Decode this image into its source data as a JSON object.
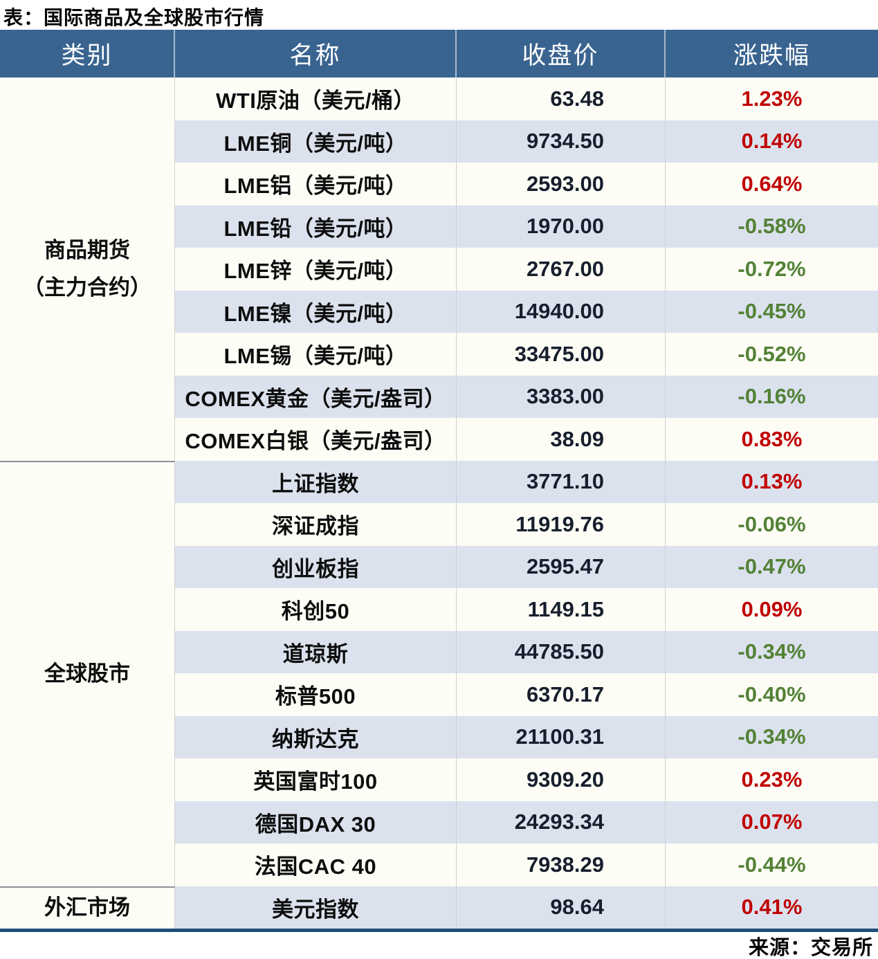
{
  "title": "表：国际商品及全球股市行情",
  "source": "来源：交易所",
  "colors": {
    "header_bg": "#3A6490",
    "row_white": "#FDFDF6",
    "row_blue": "#DBE2EE",
    "up_red": "#C00000",
    "down_green": "#538135",
    "bottom_rule_navy": "#1F4E79"
  },
  "table": {
    "headers": [
      "类别",
      "名称",
      "收盘价",
      "涨跌幅"
    ],
    "sections": [
      {
        "category": "商品期货\n（主力合约）",
        "rows": [
          {
            "name": "WTI原油（美元/桶）",
            "close": "63.48",
            "change": "1.23%"
          },
          {
            "name": "LME铜（美元/吨）",
            "close": "9734.50",
            "change": "0.14%"
          },
          {
            "name": "LME铝（美元/吨）",
            "close": "2593.00",
            "change": "0.64%"
          },
          {
            "name": "LME铅（美元/吨）",
            "close": "1970.00",
            "change": "-0.58%"
          },
          {
            "name": "LME锌（美元/吨）",
            "close": "2767.00",
            "change": "-0.72%"
          },
          {
            "name": "LME镍（美元/吨）",
            "close": "14940.00",
            "change": "-0.45%"
          },
          {
            "name": "LME锡（美元/吨）",
            "close": "33475.00",
            "change": "-0.52%"
          },
          {
            "name": "COMEX黄金（美元/盎司）",
            "close": "3383.00",
            "change": "-0.16%"
          },
          {
            "name": "COMEX白银（美元/盎司）",
            "close": "38.09",
            "change": "0.83%"
          }
        ]
      },
      {
        "category": "全球股市",
        "rows": [
          {
            "name": "上证指数",
            "close": "3771.10",
            "change": "0.13%"
          },
          {
            "name": "深证成指",
            "close": "11919.76",
            "change": "-0.06%"
          },
          {
            "name": "创业板指",
            "close": "2595.47",
            "change": "-0.47%"
          },
          {
            "name": "科创50",
            "close": "1149.15",
            "change": "0.09%"
          },
          {
            "name": "道琼斯",
            "close": "44785.50",
            "change": "-0.34%"
          },
          {
            "name": "标普500",
            "close": "6370.17",
            "change": "-0.40%"
          },
          {
            "name": "纳斯达克",
            "close": "21100.31",
            "change": "-0.34%"
          },
          {
            "name": "英国富时100",
            "close": "9309.20",
            "change": "0.23%"
          },
          {
            "name": "德国DAX 30",
            "close": "24293.34",
            "change": "0.07%"
          },
          {
            "name": "法国CAC 40",
            "close": "7938.29",
            "change": "-0.44%"
          }
        ]
      },
      {
        "category": "外汇市场",
        "rows": [
          {
            "name": "美元指数",
            "close": "98.64",
            "change": "0.41%"
          }
        ]
      }
    ]
  },
  "chart_data": {
    "type": "table",
    "title": "表：国际商品及全球股市行情",
    "columns": [
      "类别",
      "名称",
      "收盘价",
      "涨跌幅"
    ],
    "rows": [
      [
        "商品期货（主力合约）",
        "WTI原油（美元/桶）",
        63.48,
        "1.23%"
      ],
      [
        "商品期货（主力合约）",
        "LME铜（美元/吨）",
        9734.5,
        "0.14%"
      ],
      [
        "商品期货（主力合约）",
        "LME铝（美元/吨）",
        2593.0,
        "0.64%"
      ],
      [
        "商品期货（主力合约）",
        "LME铅（美元/吨）",
        1970.0,
        "-0.58%"
      ],
      [
        "商品期货（主力合约）",
        "LME锌（美元/吨）",
        2767.0,
        "-0.72%"
      ],
      [
        "商品期货（主力合约）",
        "LME镍（美元/吨）",
        14940.0,
        "-0.45%"
      ],
      [
        "商品期货（主力合约）",
        "LME锡（美元/吨）",
        33475.0,
        "-0.52%"
      ],
      [
        "商品期货（主力合约）",
        "COMEX黄金（美元/盎司）",
        3383.0,
        "-0.16%"
      ],
      [
        "商品期货（主力合约）",
        "COMEX白银（美元/盎司）",
        38.09,
        "0.83%"
      ],
      [
        "全球股市",
        "上证指数",
        3771.1,
        "0.13%"
      ],
      [
        "全球股市",
        "深证成指",
        11919.76,
        "-0.06%"
      ],
      [
        "全球股市",
        "创业板指",
        2595.47,
        "-0.47%"
      ],
      [
        "全球股市",
        "科创50",
        1149.15,
        "0.09%"
      ],
      [
        "全球股市",
        "道琼斯",
        44785.5,
        "-0.34%"
      ],
      [
        "全球股市",
        "标普500",
        6370.17,
        "-0.40%"
      ],
      [
        "全球股市",
        "纳斯达克",
        21100.31,
        "-0.34%"
      ],
      [
        "全球股市",
        "英国富时100",
        9309.2,
        "0.23%"
      ],
      [
        "全球股市",
        "德国DAX 30",
        24293.34,
        "0.07%"
      ],
      [
        "全球股市",
        "法国CAC 40",
        7938.29,
        "-0.44%"
      ],
      [
        "外汇市场",
        "美元指数",
        98.64,
        "0.41%"
      ]
    ],
    "notes": "涨跌幅为正显示红色，为负显示绿色；来源：交易所"
  }
}
